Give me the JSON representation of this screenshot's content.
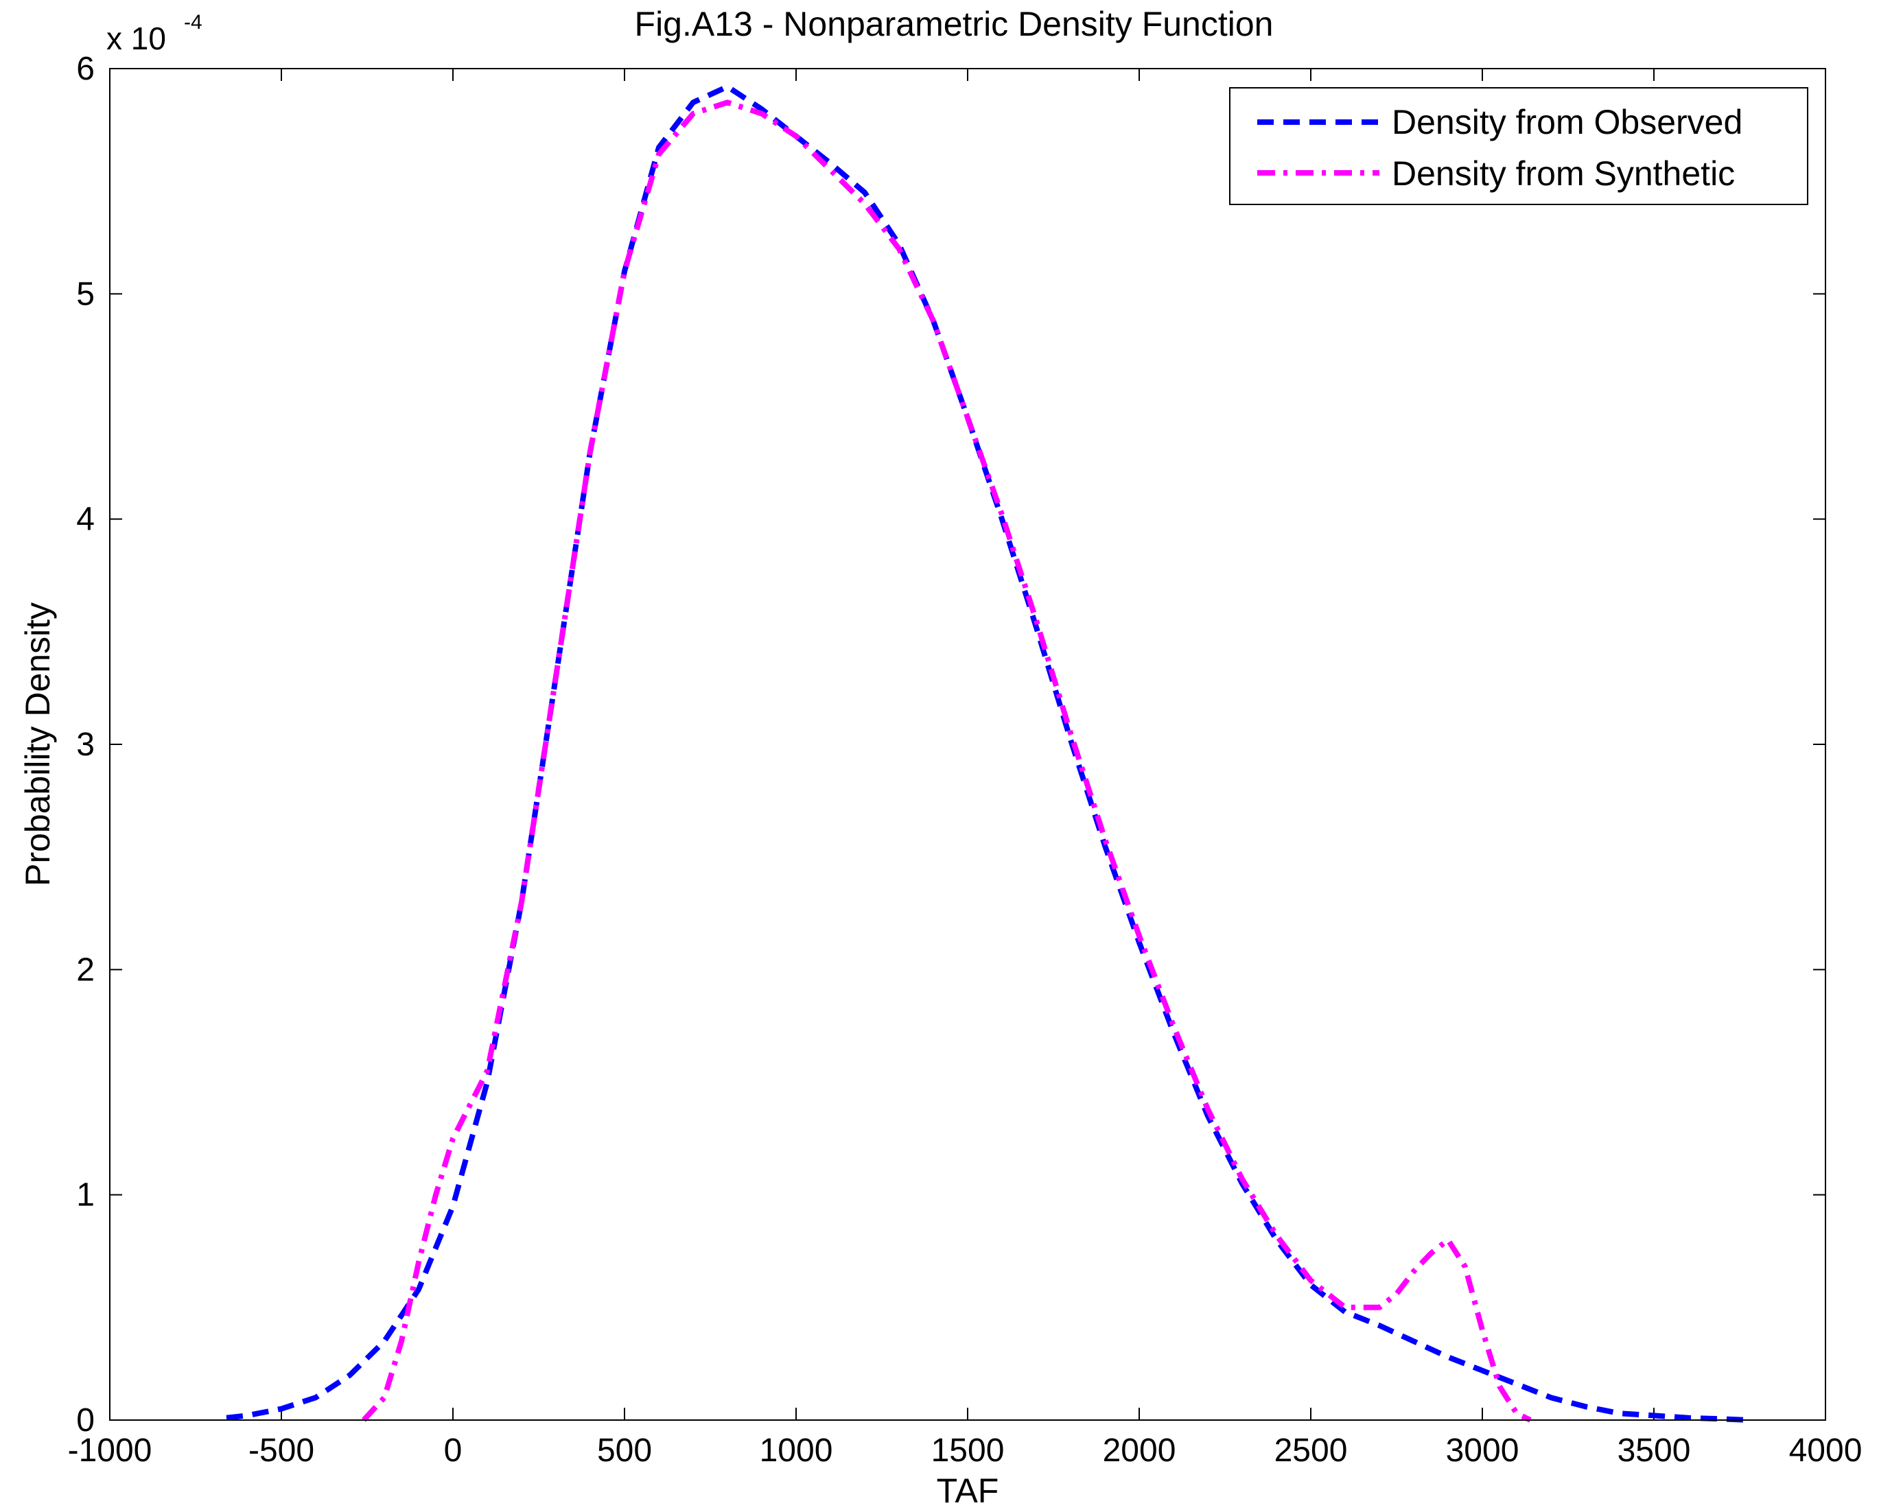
{
  "chart_data": {
    "type": "line",
    "title": "Fig.A13 - Nonparametric Density Function",
    "xlabel": "TAF",
    "ylabel": "Probability Density",
    "y_multiplier_label": "x 10",
    "y_multiplier_exponent": "-4",
    "xlim": [
      -1000,
      4000
    ],
    "ylim": [
      0,
      6
    ],
    "x_ticks": [
      -1000,
      -500,
      0,
      500,
      1000,
      1500,
      2000,
      2500,
      3000,
      3500,
      4000
    ],
    "y_ticks": [
      0,
      1,
      2,
      3,
      4,
      5,
      6
    ],
    "x_tick_labels": [
      "-1000",
      "-500",
      "0",
      "500",
      "1000",
      "1500",
      "2000",
      "2500",
      "3000",
      "3500",
      "4000"
    ],
    "y_tick_labels": [
      "0",
      "1",
      "2",
      "3",
      "4",
      "5",
      "6"
    ],
    "legend_position": "top-right",
    "grid": false,
    "series": [
      {
        "name": "Density from Observed",
        "color": "#0000ff",
        "style": "dashed",
        "x": [
          -660,
          -600,
          -500,
          -400,
          -300,
          -200,
          -100,
          0,
          100,
          200,
          300,
          400,
          500,
          600,
          700,
          800,
          900,
          1000,
          1100,
          1200,
          1300,
          1400,
          1500,
          1600,
          1700,
          1800,
          1900,
          2000,
          2100,
          2200,
          2300,
          2400,
          2500,
          2600,
          2700,
          2800,
          2900,
          3000,
          3100,
          3200,
          3300,
          3400,
          3500,
          3600,
          3700,
          3780
        ],
        "y": [
          0.01,
          0.02,
          0.05,
          0.1,
          0.2,
          0.35,
          0.58,
          0.95,
          1.5,
          2.3,
          3.3,
          4.3,
          5.1,
          5.65,
          5.85,
          5.92,
          5.82,
          5.7,
          5.58,
          5.45,
          5.22,
          4.88,
          4.45,
          4.0,
          3.52,
          3.02,
          2.55,
          2.12,
          1.72,
          1.35,
          1.05,
          0.8,
          0.6,
          0.48,
          0.42,
          0.35,
          0.28,
          0.22,
          0.16,
          0.1,
          0.06,
          0.03,
          0.02,
          0.01,
          0.005,
          0.0
        ]
      },
      {
        "name": "Density from Synthetic",
        "color": "#ff00ff",
        "style": "dashdot",
        "x": [
          -260,
          -200,
          -150,
          -100,
          -50,
          0,
          50,
          100,
          200,
          300,
          400,
          500,
          600,
          700,
          800,
          900,
          1000,
          1100,
          1200,
          1300,
          1400,
          1500,
          1600,
          1700,
          1800,
          1900,
          2000,
          2100,
          2200,
          2300,
          2400,
          2500,
          2600,
          2700,
          2750,
          2800,
          2850,
          2900,
          2950,
          3000,
          3050,
          3100,
          3140
        ],
        "y": [
          0.0,
          0.1,
          0.35,
          0.7,
          1.0,
          1.25,
          1.4,
          1.55,
          2.3,
          3.3,
          4.3,
          5.1,
          5.62,
          5.8,
          5.85,
          5.8,
          5.7,
          5.55,
          5.4,
          5.2,
          4.88,
          4.45,
          4.02,
          3.55,
          3.05,
          2.58,
          2.15,
          1.75,
          1.38,
          1.07,
          0.82,
          0.62,
          0.5,
          0.5,
          0.56,
          0.66,
          0.74,
          0.8,
          0.68,
          0.4,
          0.15,
          0.03,
          0.0
        ]
      }
    ]
  }
}
